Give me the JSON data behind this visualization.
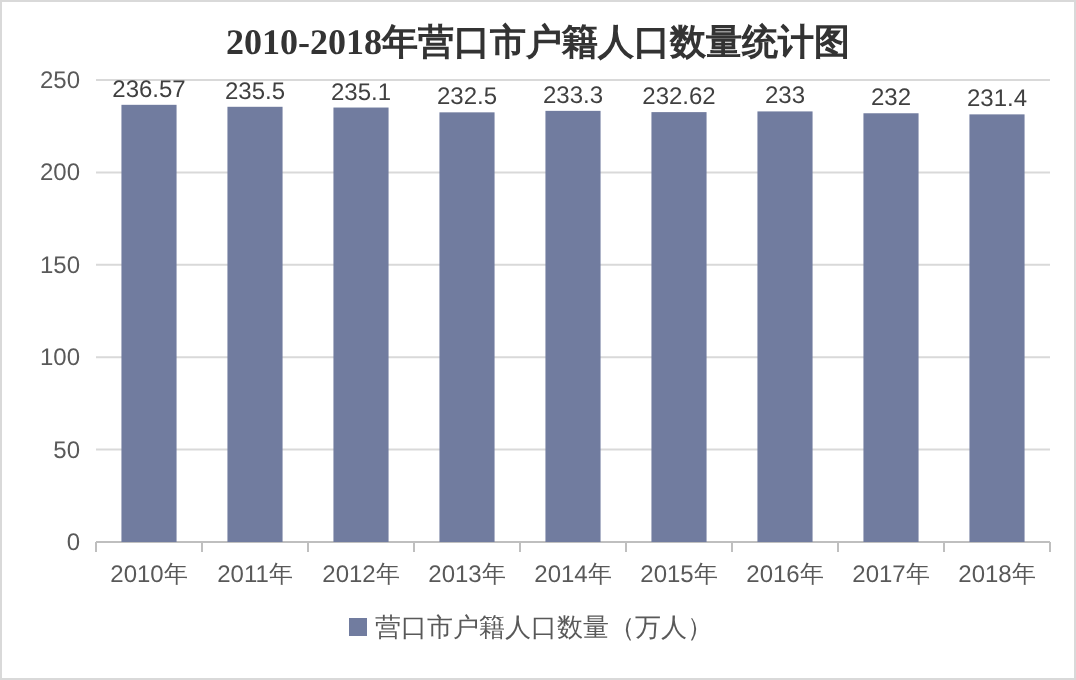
{
  "chart_data": {
    "type": "bar",
    "title": "2010-2018年营口市户籍人口数量统计图",
    "categories": [
      "2010年",
      "2011年",
      "2012年",
      "2013年",
      "2014年",
      "2015年",
      "2016年",
      "2017年",
      "2018年"
    ],
    "series": [
      {
        "name": "营口市户籍人口数量（万人）",
        "color": "#717c9f",
        "values": [
          236.57,
          235.5,
          235.1,
          232.5,
          233.3,
          232.62,
          233,
          232,
          231.4
        ]
      }
    ],
    "ylim": [
      0,
      250
    ],
    "yticks": [
      0,
      50,
      100,
      150,
      200,
      250
    ],
    "grid": "y",
    "legend": "bottom",
    "data_labels": true
  }
}
